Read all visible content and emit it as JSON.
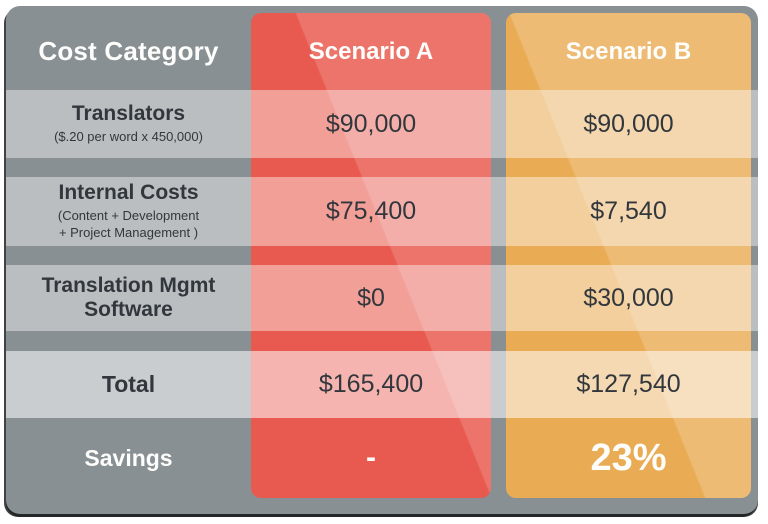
{
  "theme": {
    "card_bg": "#899094",
    "scenario_a_color": "#E85A4F",
    "scenario_b_color": "#E9AC55",
    "dark_text": "#31373C",
    "light_text": "#FDFDFB"
  },
  "table": {
    "header": {
      "category": "Cost Category",
      "scenario_a": "Scenario A",
      "scenario_b": "Scenario B"
    },
    "rows": [
      {
        "label": "Translators",
        "sublabel": "($.20 per word x 450,000)",
        "a": "$90,000",
        "b": "$90,000"
      },
      {
        "label": "Internal Costs",
        "sublabel": "(Content + Development\n+ Project Management )",
        "a": "$75,400",
        "b": "$7,540"
      },
      {
        "label": "Translation Mgmt Software",
        "a": "$0",
        "b": "$30,000"
      },
      {
        "label": "Total",
        "a": "$165,400",
        "b": "$127,540"
      },
      {
        "label": "Savings",
        "a": "-",
        "b": "23%"
      }
    ]
  },
  "chart_data": {
    "type": "table",
    "title": "",
    "columns": [
      "Cost Category",
      "Scenario A",
      "Scenario B"
    ],
    "rows": [
      [
        "Translators ($.20 per word x 450,000)",
        "$90,000",
        "$90,000"
      ],
      [
        "Internal Costs (Content + Development + Project Management )",
        "$75,400",
        "$7,540"
      ],
      [
        "Translation Mgmt Software",
        "$0",
        "$30,000"
      ],
      [
        "Total",
        "$165,400",
        "$127,540"
      ],
      [
        "Savings",
        "-",
        "23%"
      ]
    ]
  }
}
